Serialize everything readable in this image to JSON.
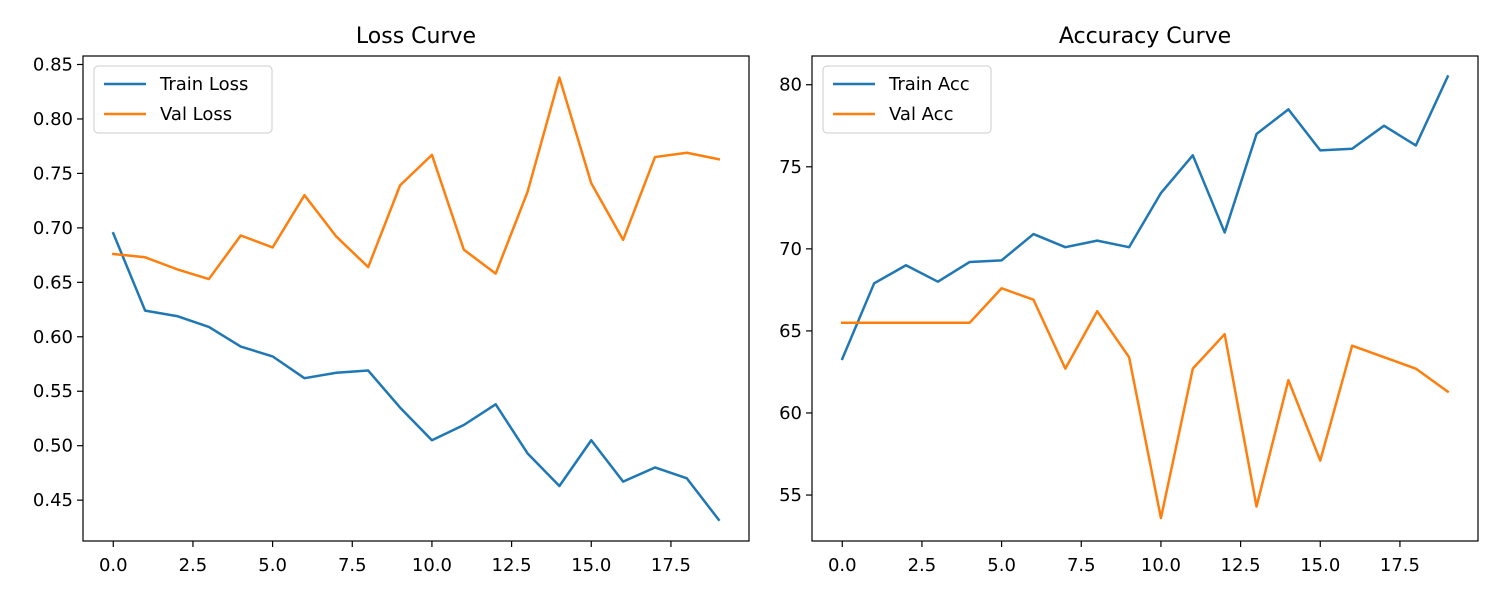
{
  "chart_data": [
    {
      "type": "line",
      "title": "Loss Curve",
      "xlabel": "",
      "ylabel": "",
      "xlim": [
        -0.95,
        19.95
      ],
      "ylim": [
        0.4125,
        0.8578
      ],
      "xticks": [
        0.0,
        2.5,
        5.0,
        7.5,
        10.0,
        12.5,
        15.0,
        17.5
      ],
      "xtick_labels": [
        "0.0",
        "2.5",
        "5.0",
        "7.5",
        "10.0",
        "12.5",
        "15.0",
        "17.5"
      ],
      "yticks": [
        0.45,
        0.5,
        0.55,
        0.6,
        0.65,
        0.7,
        0.75,
        0.8,
        0.85
      ],
      "ytick_labels": [
        "0.45",
        "0.50",
        "0.55",
        "0.60",
        "0.65",
        "0.70",
        "0.75",
        "0.80",
        "0.85"
      ],
      "legend_position": "upper-left",
      "x": [
        0,
        1,
        2,
        3,
        4,
        5,
        6,
        7,
        8,
        9,
        10,
        11,
        12,
        13,
        14,
        15,
        16,
        17,
        18,
        19
      ],
      "series": [
        {
          "name": "Train Loss",
          "color": "#1f77b4",
          "values": [
            0.695,
            0.624,
            0.619,
            0.609,
            0.591,
            0.582,
            0.562,
            0.567,
            0.569,
            0.535,
            0.505,
            0.519,
            0.538,
            0.493,
            0.463,
            0.505,
            0.467,
            0.48,
            0.47,
            0.432
          ]
        },
        {
          "name": "Val Loss",
          "color": "#ff7f0e",
          "values": [
            0.676,
            0.673,
            0.662,
            0.653,
            0.693,
            0.682,
            0.73,
            0.692,
            0.664,
            0.739,
            0.767,
            0.68,
            0.658,
            0.733,
            0.838,
            0.741,
            0.689,
            0.765,
            0.769,
            0.763
          ]
        }
      ]
    },
    {
      "type": "line",
      "title": "Accuracy Curve",
      "xlabel": "",
      "ylabel": "",
      "xlim": [
        -0.95,
        19.95
      ],
      "ylim": [
        52.2,
        81.75
      ],
      "xticks": [
        0.0,
        2.5,
        5.0,
        7.5,
        10.0,
        12.5,
        15.0,
        17.5
      ],
      "xtick_labels": [
        "0.0",
        "2.5",
        "5.0",
        "7.5",
        "10.0",
        "12.5",
        "15.0",
        "17.5"
      ],
      "yticks": [
        55,
        60,
        65,
        70,
        75,
        80
      ],
      "ytick_labels": [
        "55",
        "60",
        "65",
        "70",
        "75",
        "80"
      ],
      "legend_position": "upper-left",
      "x": [
        0,
        1,
        2,
        3,
        4,
        5,
        6,
        7,
        8,
        9,
        10,
        11,
        12,
        13,
        14,
        15,
        16,
        17,
        18,
        19
      ],
      "series": [
        {
          "name": "Train Acc",
          "color": "#1f77b4",
          "values": [
            63.3,
            67.9,
            69.0,
            68.0,
            69.2,
            69.3,
            70.9,
            70.1,
            70.5,
            70.1,
            73.4,
            75.7,
            71.0,
            77.0,
            78.5,
            76.0,
            76.1,
            77.5,
            76.3,
            80.5
          ]
        },
        {
          "name": "Val Acc",
          "color": "#ff7f0e",
          "values": [
            65.5,
            65.5,
            65.5,
            65.5,
            65.5,
            67.6,
            66.9,
            62.7,
            66.2,
            63.4,
            53.6,
            62.7,
            64.8,
            54.3,
            62.0,
            57.1,
            64.1,
            63.4,
            62.7,
            61.3
          ]
        }
      ]
    }
  ]
}
